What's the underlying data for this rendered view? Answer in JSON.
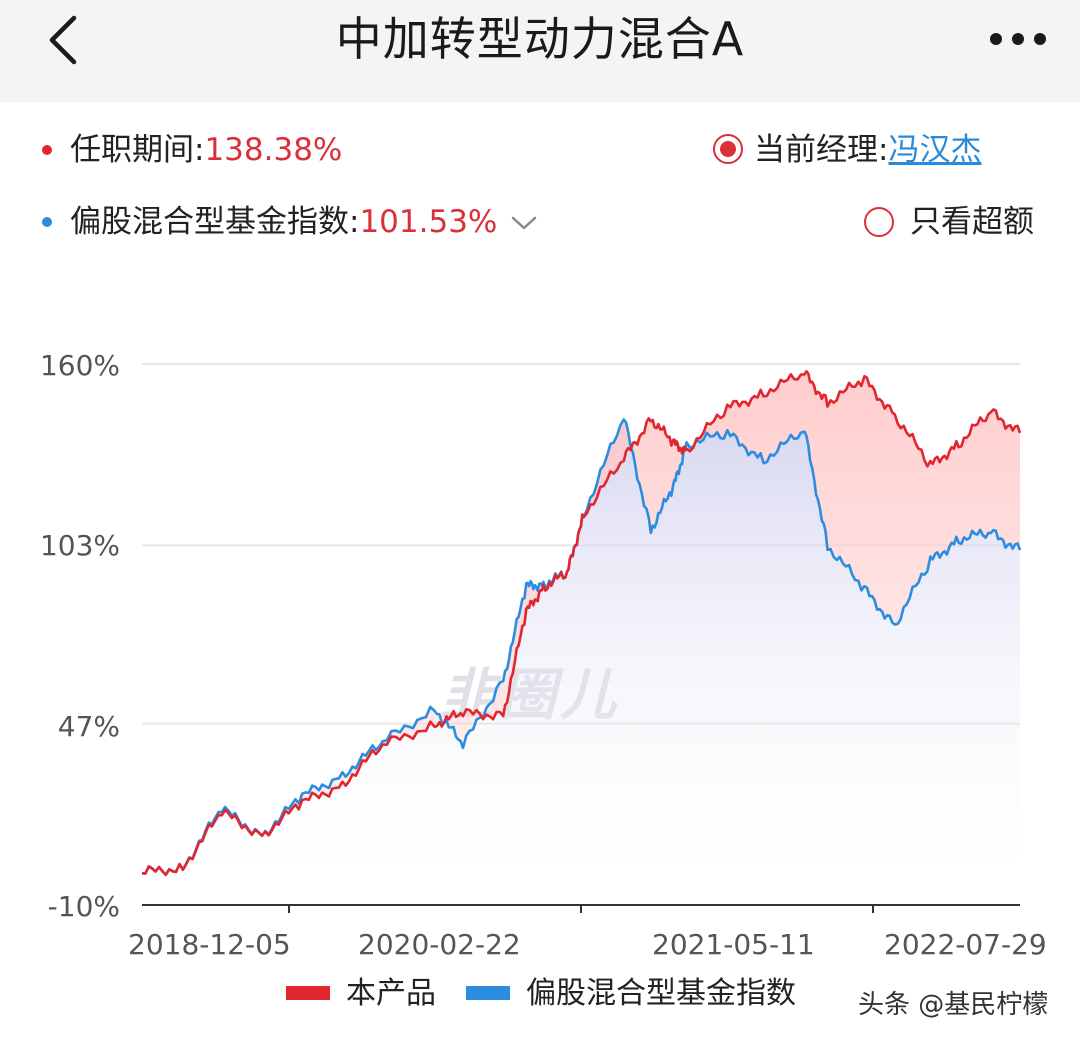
{
  "header": {
    "title": "中加转型动力混合A"
  },
  "summary": {
    "tenure_label": "任职期间:",
    "tenure_value": "138.38%",
    "index_label": "偏股混合型基金指数:",
    "index_value": "101.53%",
    "manager_label": "当前经理:",
    "manager_name": "冯汉杰",
    "excess_label": "只看超额"
  },
  "chart_data": {
    "type": "line",
    "x_tick_labels": [
      "2018-12-05",
      "2020-02-22",
      "2021-05-11",
      "2022-07-29"
    ],
    "y_tick_labels": [
      "160%",
      "103%",
      "47%",
      "-10%"
    ],
    "ylim": [
      -10,
      160
    ],
    "x": [
      "2018-12-05",
      "2019-02-05",
      "2019-04-05",
      "2019-06-05",
      "2019-08-05",
      "2019-10-05",
      "2019-12-05",
      "2020-02-22",
      "2020-04-05",
      "2020-06-05",
      "2020-07-10",
      "2020-08-05",
      "2020-09-10",
      "2020-10-05",
      "2020-12-05",
      "2021-01-15",
      "2021-02-18",
      "2021-03-10",
      "2021-05-11",
      "2021-07-05",
      "2021-09-05",
      "2021-10-10",
      "2021-12-05",
      "2022-01-20",
      "2022-03-15",
      "2022-04-27",
      "2022-06-15",
      "2022-07-29"
    ],
    "series": [
      {
        "name": "本产品",
        "color": "#e0262f",
        "values": [
          0,
          2,
          19,
          12,
          22,
          28,
          40,
          47,
          50,
          50,
          82,
          90,
          94,
          113,
          130,
          143,
          135,
          133,
          146,
          151,
          157,
          148,
          155,
          144,
          128,
          135,
          145,
          138.38
        ]
      },
      {
        "name": "偏股混合型基金指数",
        "color": "#2b8de0",
        "values": [
          0,
          2,
          20,
          12,
          24,
          31,
          41,
          52,
          40,
          61,
          90,
          91,
          94,
          113,
          143,
          108,
          121,
          135,
          138,
          130,
          139,
          103,
          89,
          78,
          98,
          105,
          107,
          101.53
        ]
      }
    ]
  },
  "watermark": "韭圈儿",
  "footer": {
    "credit": "头条 @基民柠檬"
  }
}
